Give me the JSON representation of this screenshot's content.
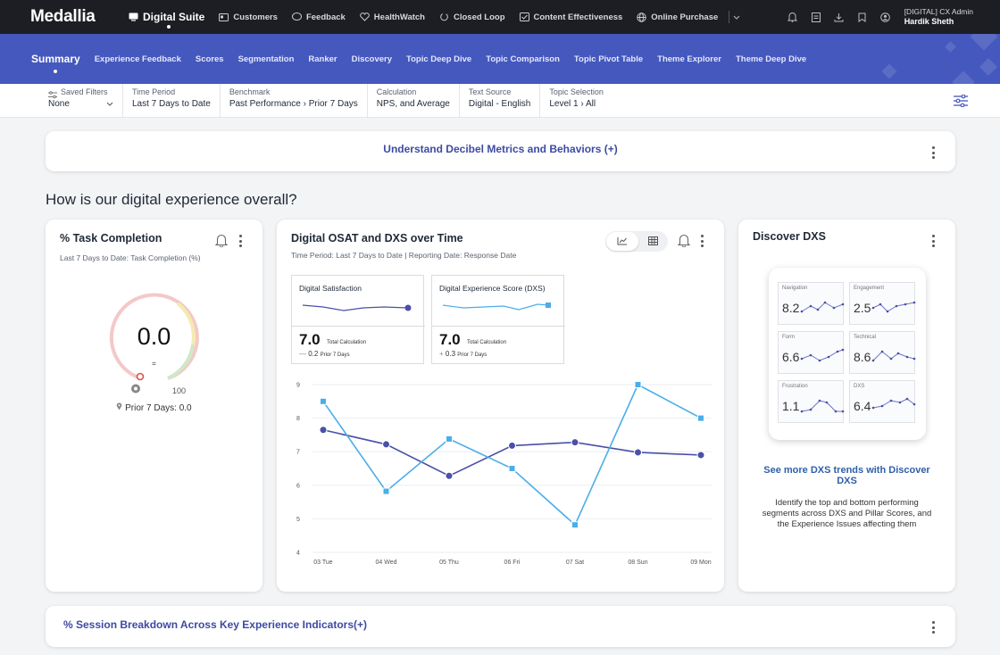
{
  "topbar": {
    "logo": "Medallia",
    "nav": [
      {
        "label": "Digital Suite",
        "icon": "monitor-icon",
        "active": true
      },
      {
        "label": "Customers",
        "icon": "id-card-icon"
      },
      {
        "label": "Feedback",
        "icon": "speech-bubble-icon"
      },
      {
        "label": "HealthWatch",
        "icon": "heart-monitor-icon"
      },
      {
        "label": "Closed Loop",
        "icon": "loop-icon"
      },
      {
        "label": "Content Effectiveness",
        "icon": "content-icon"
      },
      {
        "label": "Online Purchase",
        "icon": "globe-icon"
      }
    ],
    "user_role": "[DIGITAL] CX Admin",
    "user_name": "Hardik Sheth"
  },
  "subnav": {
    "items": [
      "Summary",
      "Experience Feedback",
      "Scores",
      "Segmentation",
      "Ranker",
      "Discovery",
      "Topic Deep Dive",
      "Topic Comparison",
      "Topic Pivot Table",
      "Theme Explorer",
      "Theme Deep Dive"
    ]
  },
  "filters": {
    "saved": {
      "label": "Saved Filters",
      "value": "None"
    },
    "items": [
      {
        "label": "Time Period",
        "value": "Last 7 Days to Date"
      },
      {
        "label": "Benchmark",
        "value": "Past Performance › Prior 7 Days"
      },
      {
        "label": "Calculation",
        "value": "NPS, and Average"
      },
      {
        "label": "Text Source",
        "value": "Digital - English"
      },
      {
        "label": "Topic Selection",
        "value": "Level 1 › All"
      }
    ]
  },
  "banner_top": {
    "label": "Understand Decibel Metrics and Behaviors (+)"
  },
  "section_title": "How is our digital experience overall?",
  "task_card": {
    "title": "% Task Completion",
    "subtitle": "Last 7 Days to Date: Task Completion (%)",
    "value": "0.0",
    "delta": "=",
    "max_label": "100",
    "prior": "Prior 7 Days: 0.0",
    "gauge_level": 0.0
  },
  "osat_card": {
    "title": "Digital OSAT and DXS over Time",
    "subtitle": "Time Period: Last 7 Days to Date | Reporting Date: Response Date",
    "mini_cards": [
      {
        "title": "Digital Satisfaction",
        "value": "7.0",
        "calc": "Total Calculation",
        "delta": "0.2",
        "delta_label": "Prior 7 Days"
      },
      {
        "title": "Digital Experience Score (DXS)",
        "value": "7.0",
        "calc": "Total Calculation",
        "delta": "0.3",
        "delta_label": "Prior 7 Days"
      }
    ]
  },
  "chart_data": {
    "type": "line",
    "x": [
      "03 Tue",
      "04 Wed",
      "05 Thu",
      "06 Fri",
      "07 Sat",
      "08 Sun",
      "09 Mon"
    ],
    "ylim": [
      4,
      9
    ],
    "yticks": [
      4,
      5,
      6,
      7,
      8,
      9
    ],
    "grid": true,
    "series": [
      {
        "values": [
          7.65,
          7.22,
          6.28,
          7.18,
          7.28,
          6.98,
          6.9
        ],
        "color": "#4a4fa8",
        "marker": "circle"
      },
      {
        "values": [
          8.5,
          5.82,
          7.38,
          6.5,
          4.82,
          9.0,
          8.0
        ],
        "color": "#4aaee8",
        "marker": "square"
      }
    ]
  },
  "dxs_card": {
    "title": "Discover DXS",
    "preview": [
      {
        "label": "Navigation",
        "value": "8.2"
      },
      {
        "label": "Engagement",
        "value": "2.5"
      },
      {
        "label": "Form",
        "value": "6.6"
      },
      {
        "label": "Technical",
        "value": "8.6"
      },
      {
        "label": "Frustration",
        "value": "1.1"
      },
      {
        "label": "DXS",
        "value": "6.4"
      }
    ],
    "link": "See more DXS trends with Discover DXS",
    "description": "Identify the top and bottom performing segments across DXS and Pillar Scores, and the Experience Issues affecting them"
  },
  "banner_bottom": {
    "label": "% Session Breakdown Across Key Experience Indicators(+)"
  }
}
